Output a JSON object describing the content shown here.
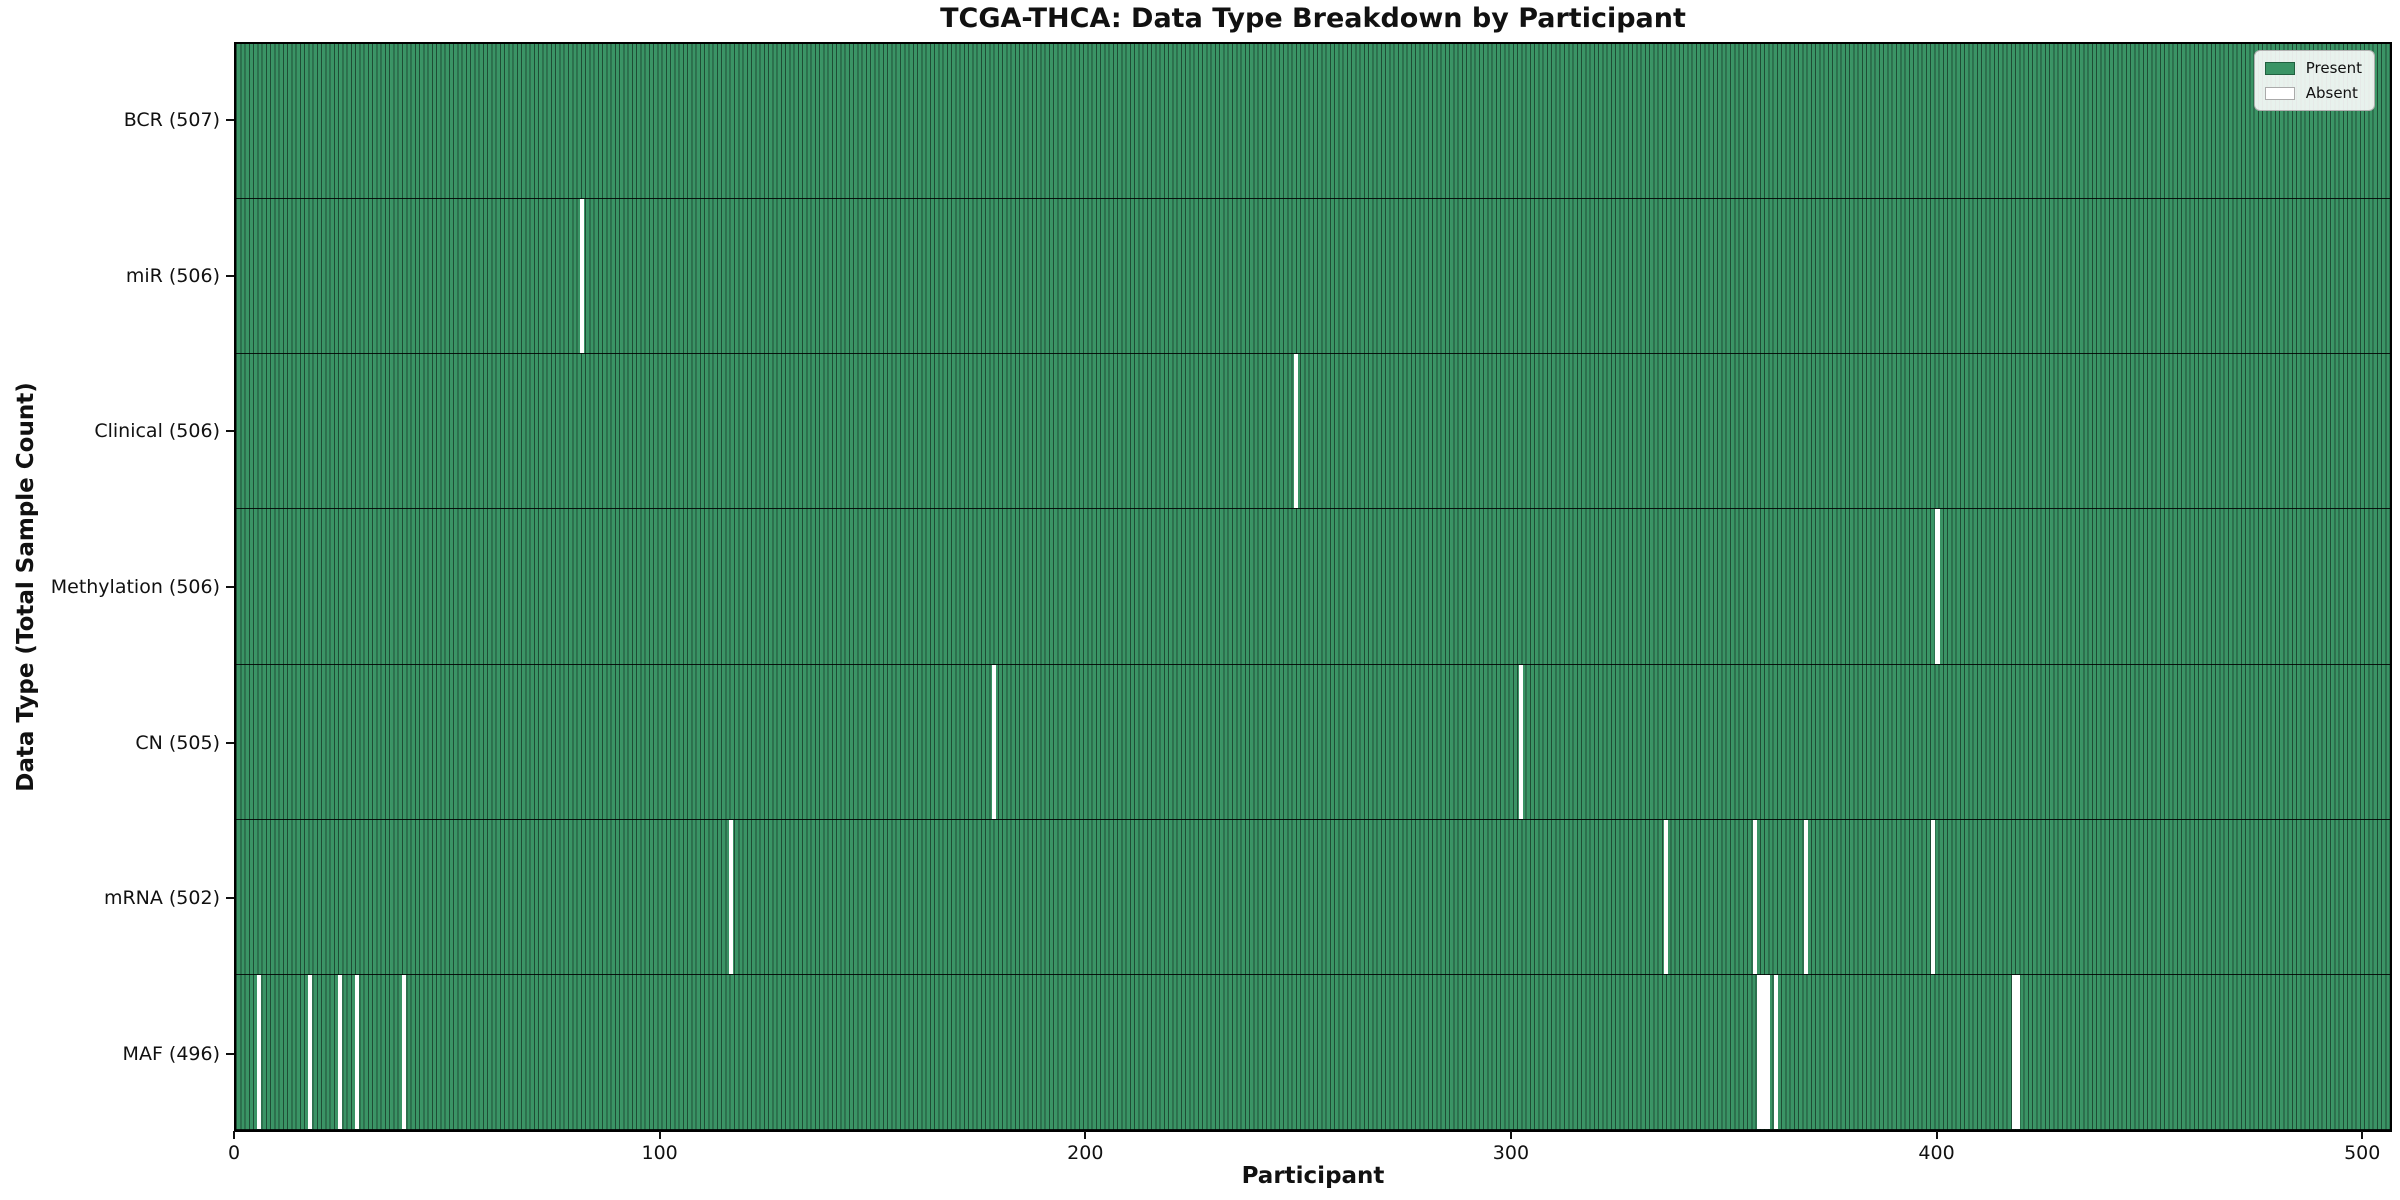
{
  "chart_data": {
    "type": "heatmap",
    "title": "TCGA-THCA: Data Type Breakdown by Participant",
    "xlabel": "Participant",
    "ylabel": "Data Type (Total Sample Count)",
    "n_participants": 507,
    "x_axis": {
      "min": 0,
      "max": 507,
      "ticks": [
        0,
        100,
        200,
        300,
        400,
        500
      ]
    },
    "grid": "off",
    "colors": {
      "present": "#3a9465",
      "absent": "#ffffff",
      "bar_edge": "rgba(0,0,0,0.48)",
      "row_divider": "#1a1a1a",
      "spine": "#000000"
    },
    "legend": {
      "position": "upper right",
      "entries": [
        {
          "label": "Present",
          "color": "#3a9465",
          "border": "#20603f"
        },
        {
          "label": "Absent",
          "color": "#ffffff",
          "border": "#aaaaaa"
        }
      ]
    },
    "rows": [
      {
        "label": "BCR (507)",
        "data_type": "BCR",
        "present_count": 507,
        "absent_participants": []
      },
      {
        "label": "miR (506)",
        "data_type": "miR",
        "present_count": 506,
        "absent_participants": [
          81
        ]
      },
      {
        "label": "Clinical (506)",
        "data_type": "Clinical",
        "present_count": 506,
        "absent_participants": [
          249
        ]
      },
      {
        "label": "Methylation (506)",
        "data_type": "Methylation",
        "present_count": 506,
        "absent_participants": [
          400
        ]
      },
      {
        "label": "CN (505)",
        "data_type": "CN",
        "present_count": 505,
        "absent_participants": [
          178,
          302
        ]
      },
      {
        "label": "mRNA (502)",
        "data_type": "mRNA",
        "present_count": 502,
        "absent_participants": [
          116,
          336,
          357,
          369,
          399
        ]
      },
      {
        "label": "MAF (496)",
        "data_type": "MAF",
        "present_count": 496,
        "absent_participants": [
          5,
          17,
          24,
          28,
          39,
          358,
          359,
          360,
          362,
          418,
          419
        ]
      }
    ]
  }
}
